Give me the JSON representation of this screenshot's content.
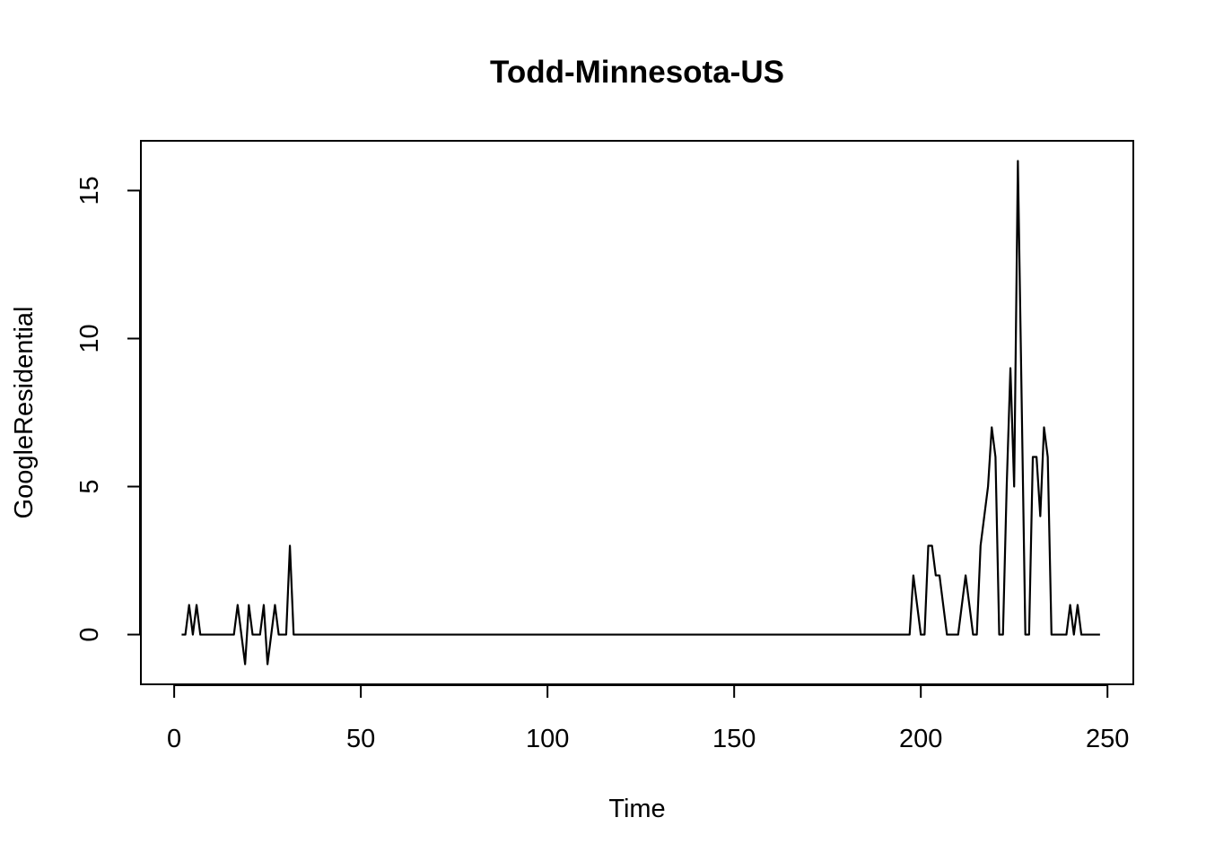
{
  "chart_data": {
    "type": "line",
    "title": "Todd-Minnesota-US",
    "xlabel": "Time",
    "ylabel": "GoogleResidential",
    "xlim": [
      -8.92,
      256.92
    ],
    "ylim": [
      -1.68,
      16.68
    ],
    "xticks": [
      0,
      50,
      100,
      150,
      200,
      250
    ],
    "yticks": [
      0,
      5,
      10,
      15
    ],
    "grid": false,
    "legend": "none",
    "line_color": "#000000",
    "series": [
      {
        "points": [
          [
            2,
            0
          ],
          [
            3,
            0
          ],
          [
            4,
            1
          ],
          [
            5,
            0
          ],
          [
            6,
            1
          ],
          [
            7,
            0
          ],
          [
            8,
            0
          ],
          [
            9,
            0
          ],
          [
            10,
            0
          ],
          [
            11,
            0
          ],
          [
            12,
            0
          ],
          [
            13,
            0
          ],
          [
            14,
            0
          ],
          [
            15,
            0
          ],
          [
            16,
            0
          ],
          [
            17,
            1
          ],
          [
            18,
            0
          ],
          [
            19,
            -1
          ],
          [
            20,
            1
          ],
          [
            21,
            0
          ],
          [
            22,
            0
          ],
          [
            23,
            0
          ],
          [
            24,
            1
          ],
          [
            25,
            -1
          ],
          [
            26,
            0
          ],
          [
            27,
            1
          ],
          [
            28,
            0
          ],
          [
            29,
            0
          ],
          [
            30,
            0
          ],
          [
            31,
            3
          ],
          [
            32,
            0
          ],
          [
            33,
            0
          ],
          [
            196,
            0
          ],
          [
            197,
            0
          ],
          [
            198,
            2
          ],
          [
            199,
            1
          ],
          [
            200,
            0
          ],
          [
            201,
            0
          ],
          [
            202,
            3
          ],
          [
            203,
            3
          ],
          [
            204,
            2
          ],
          [
            205,
            2
          ],
          [
            206,
            1
          ],
          [
            207,
            0
          ],
          [
            208,
            0
          ],
          [
            209,
            0
          ],
          [
            210,
            0
          ],
          [
            211,
            1
          ],
          [
            212,
            2
          ],
          [
            213,
            1
          ],
          [
            214,
            0
          ],
          [
            215,
            0
          ],
          [
            216,
            3
          ],
          [
            217,
            4
          ],
          [
            218,
            5
          ],
          [
            219,
            7
          ],
          [
            220,
            6
          ],
          [
            221,
            0
          ],
          [
            222,
            0
          ],
          [
            223,
            5
          ],
          [
            224,
            9
          ],
          [
            225,
            5
          ],
          [
            226,
            16
          ],
          [
            227,
            8
          ],
          [
            228,
            0
          ],
          [
            229,
            0
          ],
          [
            230,
            6
          ],
          [
            231,
            6
          ],
          [
            232,
            4
          ],
          [
            233,
            7
          ],
          [
            234,
            6
          ],
          [
            235,
            0
          ],
          [
            236,
            0
          ],
          [
            237,
            0
          ],
          [
            238,
            0
          ],
          [
            239,
            0
          ],
          [
            240,
            1
          ],
          [
            241,
            0
          ],
          [
            242,
            1
          ],
          [
            243,
            0
          ],
          [
            244,
            0
          ],
          [
            245,
            0
          ],
          [
            246,
            0
          ],
          [
            247,
            0
          ],
          [
            248,
            0
          ]
        ]
      }
    ]
  }
}
